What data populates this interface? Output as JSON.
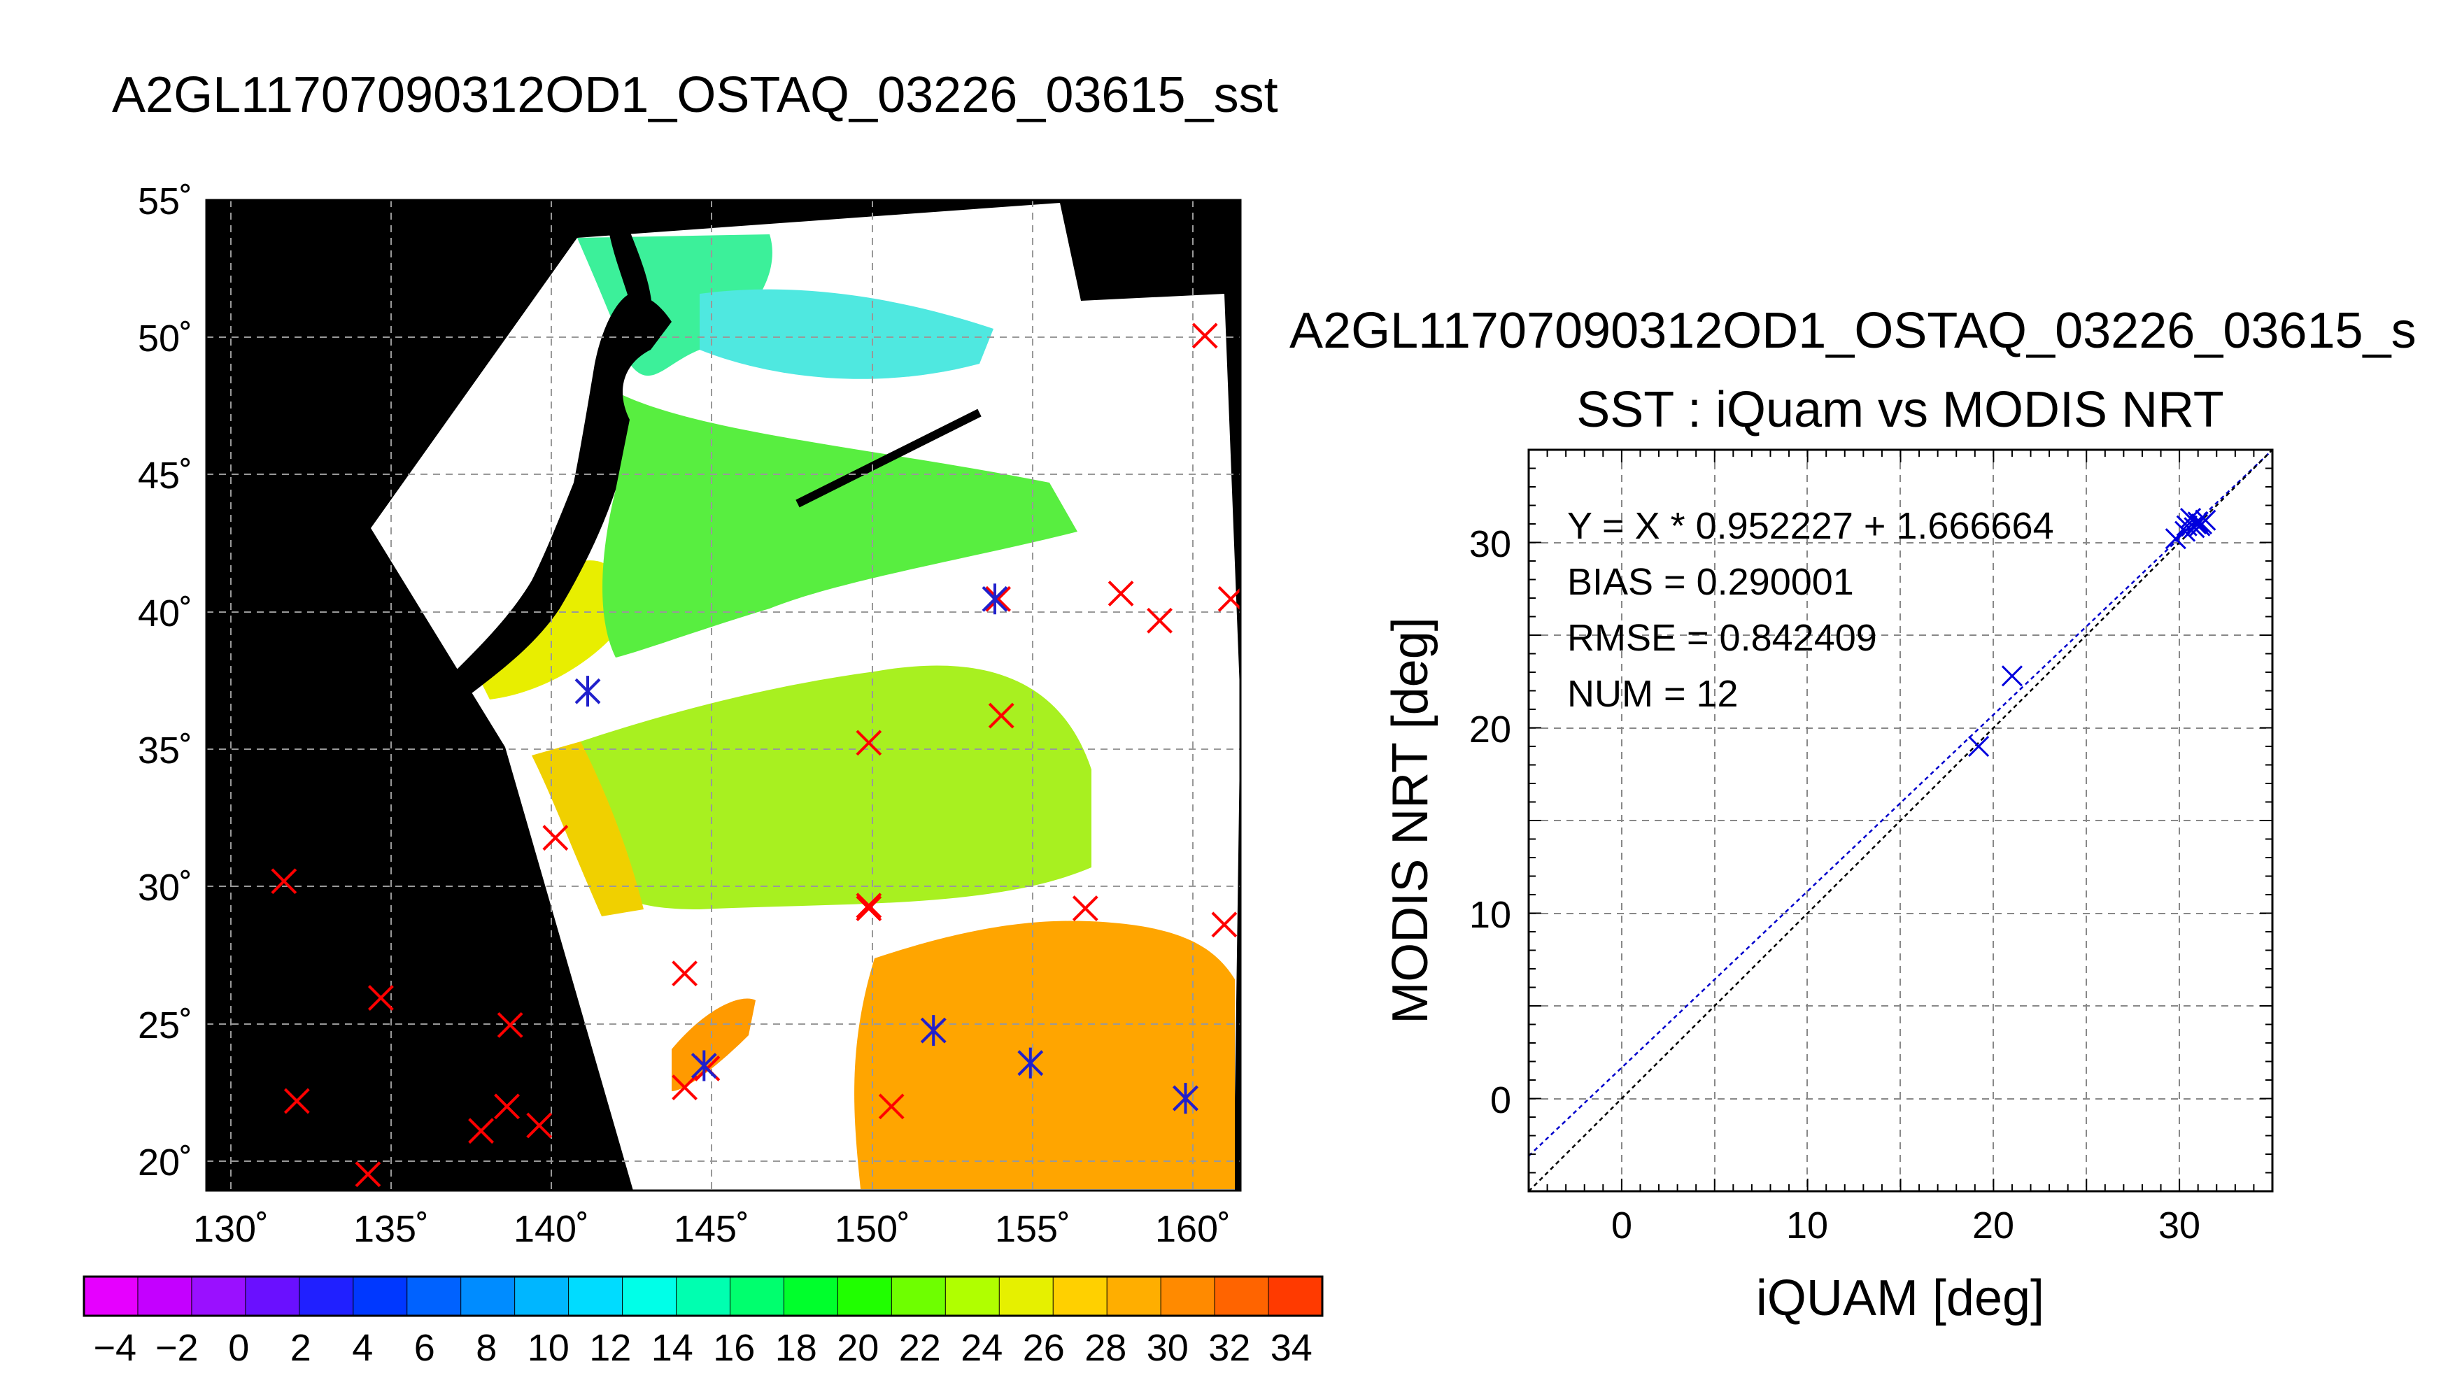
{
  "page_title": "A2GL11707090312OD1_OSTAQ_03226_03615_sst",
  "map": {
    "lon_ticks": [
      "130˚",
      "135˚",
      "140˚",
      "145˚",
      "150˚",
      "155˚",
      "160˚"
    ],
    "lat_ticks": [
      "20˚",
      "25˚",
      "30˚",
      "35˚",
      "40˚",
      "45˚",
      "50˚",
      "55˚"
    ],
    "colorbar_ticks": [
      "−4",
      "−2",
      "0",
      "2",
      "4",
      "6",
      "8",
      "10",
      "12",
      "14",
      "16",
      "18",
      "20",
      "22",
      "24",
      "26",
      "28",
      "30",
      "32",
      "34"
    ],
    "colorbar_colors": [
      "#e600ff",
      "#c400ff",
      "#9a10ff",
      "#6a10ff",
      "#2020ff",
      "#0038ff",
      "#0062ff",
      "#008cff",
      "#00b6ff",
      "#00dcff",
      "#00ffe8",
      "#00ffb0",
      "#00ff6e",
      "#00ff2c",
      "#20ff00",
      "#6eff00",
      "#b0ff00",
      "#e6f000",
      "#ffd000",
      "#ffae00",
      "#ff8a00",
      "#ff6400",
      "#ff3a00"
    ],
    "colorbar_range": [
      -5,
      35
    ],
    "colors": {
      "land": "#000000",
      "ocean_swath": "#ffffff",
      "marker_red": "#ff0000",
      "marker_blue": "#2020cc",
      "grid": "#999999"
    }
  },
  "scatter": {
    "suptitle": "A2GL11707090312OD1_OSTAQ_03226_03615_s",
    "title": "SST : iQuam vs MODIS NRT",
    "xlabel": "iQUAM [deg]",
    "ylabel": "MODIS NRT [deg]",
    "xticks": [
      "0",
      "10",
      "20",
      "30"
    ],
    "yticks": [
      "0",
      "10",
      "20",
      "30"
    ],
    "stats": {
      "fit": "Y = X * 0.952227 + 1.666664",
      "bias": "BIAS = 0.290001",
      "rmse": "RMSE = 0.842409",
      "num": "NUM = 12"
    }
  },
  "chart_data": [
    {
      "type": "scatter",
      "subtype": "map",
      "title": "A2GL11707090312OD1_OSTAQ_03226_03615_sst",
      "xlabel": "",
      "ylabel": "",
      "xlim": [
        129.5,
        161.5
      ],
      "ylim": [
        19,
        55.5
      ],
      "grid": true,
      "series": [
        {
          "points": [
            [
              160.4,
              50.5
            ],
            [
              157.8,
              41.0
            ],
            [
              159.0,
              40.0
            ],
            [
              161.2,
              40.8
            ],
            [
              154.1,
              36.5
            ],
            [
              154.0,
              40.8
            ],
            [
              150.0,
              35.5
            ],
            [
              140.3,
              32.0
            ],
            [
              131.9,
              30.4
            ],
            [
              150.0,
              29.4
            ],
            [
              150.0,
              29.5
            ],
            [
              156.7,
              29.4
            ],
            [
              161.0,
              28.8
            ],
            [
              144.3,
              27.0
            ],
            [
              134.9,
              26.1
            ],
            [
              138.9,
              25.1
            ],
            [
              152.0,
              24.9
            ],
            [
              132.3,
              22.3
            ],
            [
              138.8,
              22.1
            ],
            [
              138.0,
              21.2
            ],
            [
              139.8,
              21.4
            ],
            [
              144.3,
              22.8
            ],
            [
              145.0,
              23.5
            ],
            [
              150.7,
              22.1
            ],
            [
              159.8,
              22.4
            ],
            [
              134.5,
              19.6
            ]
          ]
        },
        {
          "points": [
            [
              141.3,
              37.4
            ],
            [
              153.9,
              40.8
            ],
            [
              144.9,
              23.6
            ],
            [
              152.0,
              24.9
            ],
            [
              155.0,
              23.7
            ],
            [
              159.8,
              22.4
            ]
          ]
        }
      ]
    },
    {
      "type": "scatter",
      "title": "SST : iQuam vs MODIS NRT",
      "xlabel": "iQUAM [deg]",
      "ylabel": "MODIS NRT [deg]",
      "xlim": [
        -5,
        35
      ],
      "ylim": [
        -5,
        35
      ],
      "grid": true,
      "series": [
        {
          "points": [
            [
              19.2,
              19.0
            ],
            [
              21.0,
              22.8
            ],
            [
              29.8,
              30.2
            ],
            [
              30.3,
              30.6
            ],
            [
              30.6,
              31.3
            ],
            [
              30.8,
              30.8
            ],
            [
              31.0,
              31.1
            ],
            [
              31.2,
              31.0
            ],
            [
              31.4,
              31.2
            ],
            [
              30.4,
              30.9
            ],
            [
              30.9,
              31.0
            ],
            [
              31.1,
              30.9
            ]
          ]
        }
      ],
      "lines": [
        {
          "slope": 0.952227,
          "intercept": 1.666664
        },
        {
          "slope": 1,
          "intercept": 0
        }
      ]
    }
  ]
}
